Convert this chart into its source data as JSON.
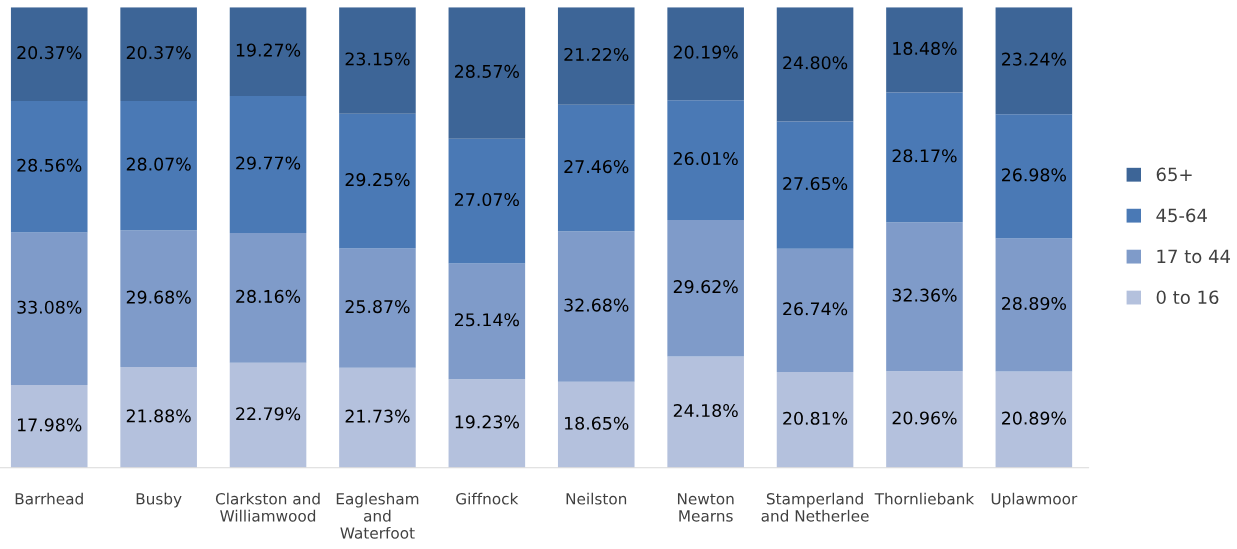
{
  "chart_data": {
    "type": "bar",
    "stacked": true,
    "legend": "right",
    "data_labels": true,
    "categories": [
      "Barrhead",
      "Busby",
      "Clarkston and\nWilliamwood",
      "Eaglesham\nand\nWaterfoot",
      "Giffnock",
      "Neilston",
      "Newton\nMearns",
      "Stamperland\nand Netherlee",
      "Thornliebank",
      "Uplawmoor"
    ],
    "series": [
      {
        "name": "0 to 16",
        "color": "#b4c1dd",
        "values": [
          17.98,
          21.88,
          22.79,
          21.73,
          19.23,
          18.65,
          24.18,
          20.81,
          20.96,
          20.89
        ],
        "value_labels": [
          "17.98%",
          "21.88%",
          "22.79%",
          "21.73%",
          "19.23%",
          "18.65%",
          "24.18%",
          "20.81%",
          "20.96%",
          "20.89%"
        ]
      },
      {
        "name": "17 to 44",
        "color": "#7f9bc9",
        "values": [
          33.08,
          29.68,
          28.16,
          25.87,
          25.14,
          32.68,
          29.62,
          26.74,
          32.36,
          28.89
        ],
        "value_labels": [
          "33.08%",
          "29.68%",
          "28.16%",
          "25.87%",
          "25.14%",
          "32.68%",
          "29.62%",
          "26.74%",
          "32.36%",
          "28.89%"
        ]
      },
      {
        "name": "45-64",
        "color": "#4a79b5",
        "values": [
          28.56,
          28.07,
          29.77,
          29.25,
          27.07,
          27.46,
          26.01,
          27.65,
          28.17,
          26.98
        ],
        "value_labels": [
          "28.56%",
          "28.07%",
          "29.77%",
          "29.25%",
          "27.07%",
          "27.46%",
          "26.01%",
          "27.65%",
          "28.17%",
          "26.98%"
        ]
      },
      {
        "name": "65+",
        "color": "#3d6597",
        "values": [
          20.37,
          20.37,
          19.27,
          23.15,
          28.57,
          21.22,
          20.19,
          24.8,
          18.48,
          23.24
        ],
        "value_labels": [
          "20.37%",
          "20.37%",
          "19.27%",
          "23.15%",
          "28.57%",
          "21.22%",
          "20.19%",
          "24.80%",
          "18.48%",
          "23.24%"
        ]
      }
    ]
  }
}
